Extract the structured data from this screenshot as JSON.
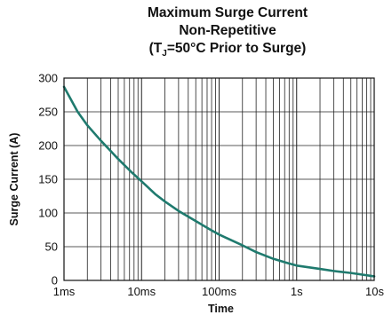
{
  "chart_data": {
    "type": "line",
    "title_line1": "Maximum Surge Current",
    "title_line2": "Non-Repetitive",
    "title_line3_pre": "(T",
    "title_line3_sub": "J",
    "title_line3_post": "=50°C Prior to Surge)",
    "xlabel": "Time",
    "ylabel": "Surge Current (A)",
    "x_scale": "log",
    "xlim": [
      0.001,
      10
    ],
    "ylim": [
      0,
      300
    ],
    "grid": true,
    "x_ticks": [
      {
        "value": 0.001,
        "label": "1ms"
      },
      {
        "value": 0.01,
        "label": "10ms"
      },
      {
        "value": 0.1,
        "label": "100ms"
      },
      {
        "value": 1,
        "label": "1s"
      },
      {
        "value": 10,
        "label": "10s"
      }
    ],
    "y_ticks": [
      0,
      50,
      100,
      150,
      200,
      250,
      300
    ],
    "series": [
      {
        "color": "#1f7a6e",
        "x": [
          0.001,
          0.0015,
          0.002,
          0.003,
          0.005,
          0.0075,
          0.01,
          0.015,
          0.02,
          0.03,
          0.05,
          0.075,
          0.1,
          0.2,
          0.3,
          0.5,
          0.75,
          1,
          2,
          3,
          5,
          10
        ],
        "y": [
          287,
          250,
          230,
          207,
          180,
          160,
          147,
          128,
          117,
          103,
          88,
          76,
          68,
          52,
          42,
          32,
          26,
          22,
          17,
          14,
          11,
          6
        ]
      }
    ]
  }
}
